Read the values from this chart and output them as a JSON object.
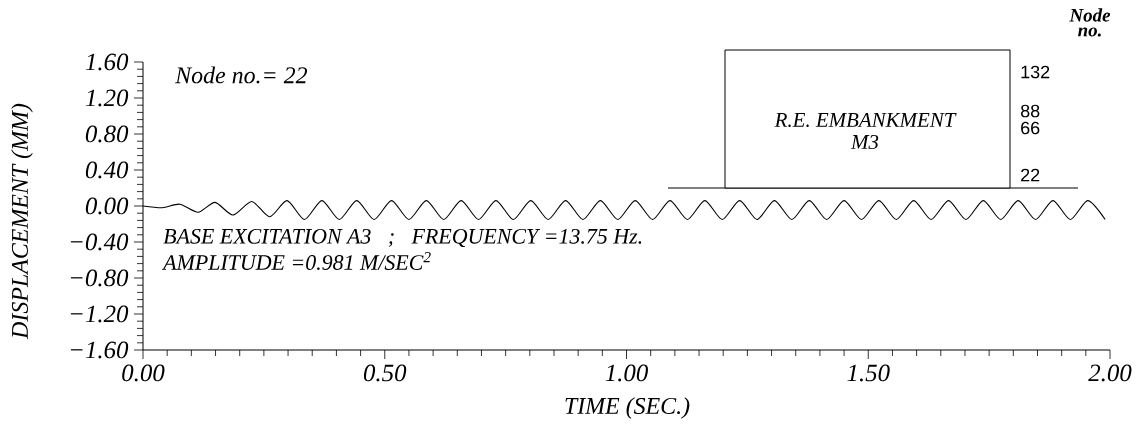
{
  "chart_data": {
    "type": "line",
    "xlabel": "TIME (SEC.)",
    "ylabel": "DISPLACEMENT (MM)",
    "color": "#000000",
    "marker": "none",
    "line_style": "solid",
    "xlim": [
      0,
      2
    ],
    "ylim": [
      -1.6,
      1.6
    ],
    "xticks": [
      {
        "value": 0,
        "label": "0.00"
      },
      {
        "value": 0.5,
        "label": "0.50"
      },
      {
        "value": 1,
        "label": "1.00"
      },
      {
        "value": 1.5,
        "label": "1.50"
      },
      {
        "value": 2,
        "label": "2.00"
      }
    ],
    "yticks": [
      {
        "value": 1.6,
        "label": "1.60"
      },
      {
        "value": 1.2,
        "label": "1.20"
      },
      {
        "value": 0.8,
        "label": "0.80"
      },
      {
        "value": 0.4,
        "label": "0.40"
      },
      {
        "value": 0,
        "label": "0.00"
      },
      {
        "value": -0.4,
        "label": "−0.40"
      },
      {
        "value": -0.8,
        "label": "−0.80"
      },
      {
        "value": -1.2,
        "label": "−1.20"
      },
      {
        "value": -1.6,
        "label": "−1.60"
      }
    ],
    "x": [
      0,
      0.04,
      0.076,
      0.114,
      0.149,
      0.186,
      0.225,
      0.262,
      0.298,
      0.334,
      0.37,
      0.406,
      0.442,
      0.478,
      0.514,
      0.55,
      0.586,
      0.622,
      0.658,
      0.694,
      0.73,
      0.766,
      0.802,
      0.838,
      0.874,
      0.91,
      0.946,
      0.982,
      1.018,
      1.054,
      1.09,
      1.126,
      1.162,
      1.198,
      1.234,
      1.27,
      1.306,
      1.342,
      1.378,
      1.414,
      1.45,
      1.486,
      1.522,
      1.558,
      1.594,
      1.63,
      1.666,
      1.702,
      1.738,
      1.774,
      1.81,
      1.846,
      1.882,
      1.918,
      1.954,
      1.99
    ],
    "values": [
      0,
      -0.02,
      0.02,
      -0.07,
      0.04,
      -0.1,
      0.05,
      -0.12,
      0.06,
      -0.15,
      0.06,
      -0.15,
      0.06,
      -0.15,
      0.06,
      -0.15,
      0.06,
      -0.15,
      0.06,
      -0.15,
      0.06,
      -0.15,
      0.06,
      -0.15,
      0.06,
      -0.15,
      0.06,
      -0.15,
      0.06,
      -0.15,
      0.06,
      -0.15,
      0.06,
      -0.15,
      0.06,
      -0.15,
      0.06,
      -0.15,
      0.06,
      -0.15,
      0.06,
      -0.15,
      0.06,
      -0.15,
      0.06,
      -0.15,
      0.06,
      -0.15,
      0.06,
      -0.15,
      0.06,
      -0.15,
      0.06,
      -0.15,
      0.06,
      -0.15
    ],
    "annotations": [
      "Node no.= 22",
      "BASE EXCITATION A3   ;   FREQUENCY =13.75 Hz.",
      "AMPLITUDE =0.981 M/SEC$^{2}$",
      "R.E. EMBANKMENT",
      "M3",
      "Node",
      "no.",
      "132",
      "88",
      "66",
      "22"
    ]
  }
}
